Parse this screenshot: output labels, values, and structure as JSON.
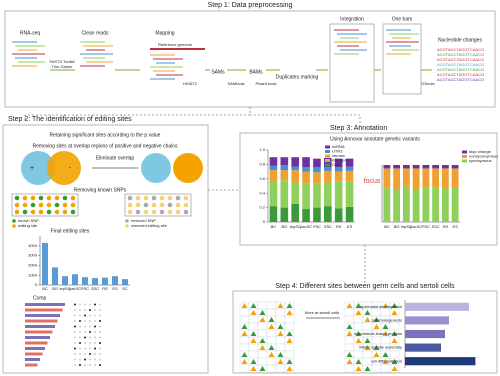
{
  "step1": {
    "title": "Step 1: Data preprocessing",
    "labels": [
      "RNA-seq",
      "Clean reads",
      "Mapping",
      "Integration",
      "One bam",
      "Nucleotide changes"
    ],
    "tools": [
      "FASTX Toolkit",
      "Trim Galore",
      "Reference genome",
      "HISAT2",
      "SAMs",
      "SAMtools",
      "BAMs",
      "Picard tools",
      "Duplicates marking",
      "REDtools"
    ]
  },
  "step2": {
    "title": "Step 2: The identification of editing sites",
    "steps": [
      "Retaining significant sites according to the p value",
      "Removing sites at overlap regions of positive and negative chains",
      "Eliminate overlap",
      "Removing known SNPs",
      "Final editing sites"
    ],
    "signs": [
      "+",
      "-"
    ],
    "legend": [
      "known SNP",
      "editing site",
      "removed SNP",
      "reserved editing site"
    ],
    "comparison": "Comp"
  },
  "step3": {
    "title": "Step 3: Annotation",
    "subtitle": "Using Annovar annotate genetic variants",
    "focus": "focus"
  },
  "step4": {
    "title": "Step 4: Different sites between germ cells and sertoli cells",
    "arrows": [
      "More at sertoli cells",
      "GO analysis"
    ]
  },
  "chart_data": [
    {
      "type": "bar",
      "categories": [
        "BC",
        "BG",
        "lepSC",
        "pacSC",
        "PSC",
        "SSC",
        "RS",
        "ES",
        "SC"
      ],
      "values": [
        4300,
        1800,
        900,
        1100,
        800,
        700,
        750,
        900,
        600
      ],
      "color": "#5b9bd5",
      "ylim": [
        0,
        5000
      ],
      "yticks": [
        0,
        1000,
        2000,
        3000,
        4000
      ]
    },
    {
      "type": "stacked",
      "categories": [
        "BC",
        "BG",
        "lepSC",
        "pacSC",
        "PSC",
        "SSC",
        "RS",
        "ES"
      ],
      "series": [
        {
          "name": "CDS",
          "color": "#3a9a3a",
          "values": [
            0.22,
            0.2,
            0.25,
            0.18,
            0.2,
            0.22,
            0.19,
            0.21
          ]
        },
        {
          "name": "intergenic",
          "color": "#8fd05a",
          "values": [
            0.35,
            0.38,
            0.3,
            0.36,
            0.34,
            0.33,
            0.37,
            0.35
          ]
        },
        {
          "name": "intronic",
          "color": "#f0a030",
          "values": [
            0.15,
            0.14,
            0.17,
            0.16,
            0.15,
            0.16,
            0.14,
            0.15
          ]
        },
        {
          "name": "UTR3",
          "color": "#4a90d0",
          "values": [
            0.06,
            0.07,
            0.05,
            0.06,
            0.07,
            0.05,
            0.06,
            0.06
          ]
        },
        {
          "name": "ncRNA",
          "color": "#7030a0",
          "values": [
            0.12,
            0.11,
            0.13,
            0.14,
            0.12,
            0.13,
            0.12,
            0.11
          ]
        }
      ],
      "ylim": [
        0,
        1
      ],
      "yticks": [
        0,
        0.2,
        0.4,
        0.6,
        0.8,
        {
          "value": 1,
          "label": "1.0"
        }
      ]
    },
    {
      "type": "stacked",
      "categories": [
        "BC",
        "BG",
        "lepSC",
        "pacSC",
        "PSC",
        "SSC",
        "RS",
        "ES"
      ],
      "series": [
        {
          "name": "synonymous",
          "color": "#8fd05a",
          "values": [
            0.6,
            0.58,
            0.62,
            0.57,
            0.6,
            0.61,
            0.59,
            0.6
          ]
        },
        {
          "name": "nonsynonymous",
          "color": "#f0a030",
          "values": [
            0.34,
            0.36,
            0.32,
            0.37,
            0.34,
            0.33,
            0.35,
            0.34
          ]
        },
        {
          "name": "stop change",
          "color": "#7030a0",
          "values": [
            0.06,
            0.06,
            0.06,
            0.06,
            0.06,
            0.06,
            0.06,
            0.06
          ]
        }
      ],
      "ylim": [
        0,
        1
      ]
    },
    {
      "type": "barh",
      "categories": [
        "spermatid development",
        "spermatogenesis",
        "microtubule-based process",
        "mitotic spindle assembly",
        "cell differentiation"
      ],
      "values": [
        0.8,
        0.55,
        0.5,
        0.45,
        0.88
      ],
      "colors": [
        "#b9b3e0",
        "#9a92d0",
        "#7a72bd",
        "#4a5aa0",
        "#1f3a7a"
      ],
      "xlim": [
        0,
        1
      ]
    }
  ]
}
